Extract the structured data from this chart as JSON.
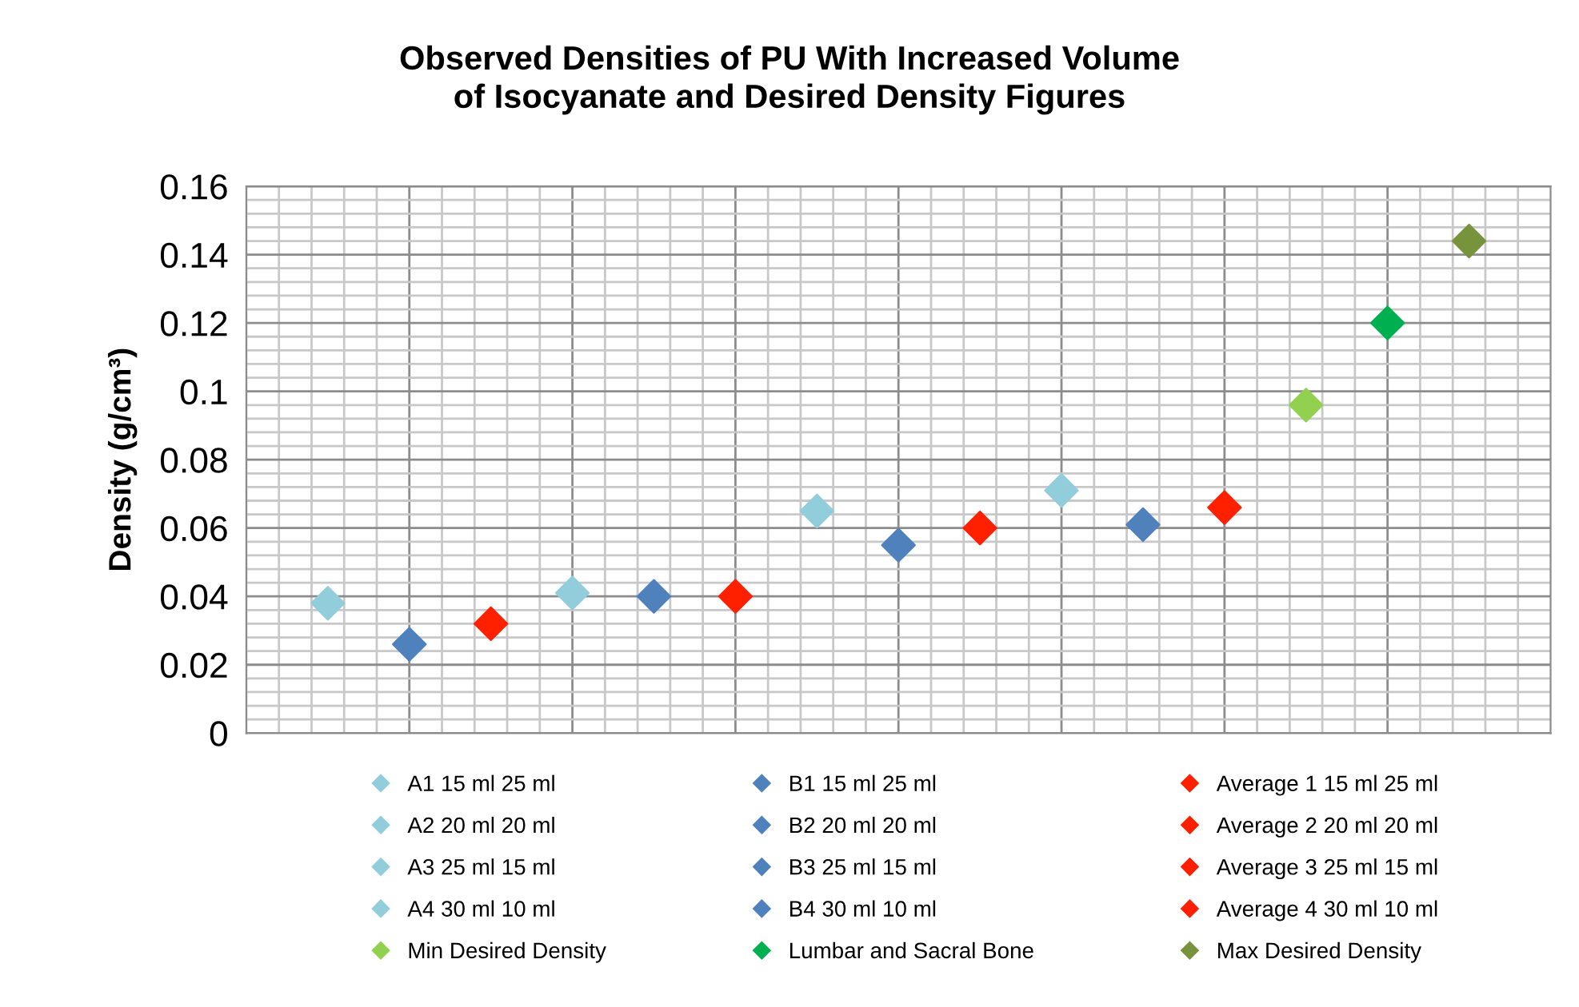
{
  "chart_data": {
    "type": "scatter",
    "title": "Observed Densities of PU With Increased Volume\nof Isocyanate and Desired Density Figures",
    "ylabel": "Density (g/cm³)",
    "categories": [
      null,
      null,
      null,
      null,
      null,
      null,
      null,
      null,
      null,
      null,
      null,
      null,
      null,
      null,
      null
    ],
    "ylim": [
      0,
      0.16
    ],
    "yticks": [
      0,
      0.02,
      0.04,
      0.06,
      0.08,
      0.1,
      0.12,
      0.14,
      0.16
    ],
    "grid": true,
    "legend": "bottom",
    "marker": "diamond",
    "series": [
      {
        "name": "A1 15 ml 25 ml",
        "color": "#92cddc",
        "values": [
          0.038,
          null,
          null,
          null,
          null,
          null,
          null,
          null,
          null,
          null,
          null,
          null,
          null,
          null,
          null
        ]
      },
      {
        "name": "B1 15 ml 25 ml",
        "color": "#4f81bd",
        "values": [
          null,
          0.026,
          null,
          null,
          null,
          null,
          null,
          null,
          null,
          null,
          null,
          null,
          null,
          null,
          null
        ]
      },
      {
        "name": "Average 1 15 ml 25 ml",
        "color": "#ff2000",
        "values": [
          null,
          null,
          0.032,
          null,
          null,
          null,
          null,
          null,
          null,
          null,
          null,
          null,
          null,
          null,
          null
        ]
      },
      {
        "name": "A2 20 ml 20 ml",
        "color": "#92cddc",
        "values": [
          null,
          null,
          null,
          0.041,
          null,
          null,
          null,
          null,
          null,
          null,
          null,
          null,
          null,
          null,
          null
        ]
      },
      {
        "name": "B2 20 ml 20 ml",
        "color": "#4f81bd",
        "values": [
          null,
          null,
          null,
          null,
          0.04,
          null,
          null,
          null,
          null,
          null,
          null,
          null,
          null,
          null,
          null
        ]
      },
      {
        "name": "Average 2 20 ml 20 ml",
        "color": "#ff2000",
        "values": [
          null,
          null,
          null,
          null,
          null,
          0.04,
          null,
          null,
          null,
          null,
          null,
          null,
          null,
          null,
          null
        ]
      },
      {
        "name": "A3 25 ml 15 ml",
        "color": "#92cddc",
        "values": [
          null,
          null,
          null,
          null,
          null,
          null,
          0.065,
          null,
          null,
          null,
          null,
          null,
          null,
          null,
          null
        ]
      },
      {
        "name": "B3 25 ml 15 ml",
        "color": "#4f81bd",
        "values": [
          null,
          null,
          null,
          null,
          null,
          null,
          null,
          0.055,
          null,
          null,
          null,
          null,
          null,
          null,
          null
        ]
      },
      {
        "name": "Average 3 25 ml 15 ml",
        "color": "#ff2000",
        "values": [
          null,
          null,
          null,
          null,
          null,
          null,
          null,
          null,
          0.06,
          null,
          null,
          null,
          null,
          null,
          null
        ]
      },
      {
        "name": "A4 30 ml 10 ml",
        "color": "#92cddc",
        "values": [
          null,
          null,
          null,
          null,
          null,
          null,
          null,
          null,
          null,
          0.071,
          null,
          null,
          null,
          null,
          null
        ]
      },
      {
        "name": "B4 30 ml 10 ml",
        "color": "#4f81bd",
        "values": [
          null,
          null,
          null,
          null,
          null,
          null,
          null,
          null,
          null,
          null,
          0.061,
          null,
          null,
          null,
          null
        ]
      },
      {
        "name": "Average 4 30 ml 10 ml",
        "color": "#ff2000",
        "values": [
          null,
          null,
          null,
          null,
          null,
          null,
          null,
          null,
          null,
          null,
          null,
          0.066,
          null,
          null,
          null
        ]
      },
      {
        "name": "Min Desired Density",
        "color": "#92d050",
        "values": [
          null,
          null,
          null,
          null,
          null,
          null,
          null,
          null,
          null,
          null,
          null,
          null,
          0.096,
          null,
          null
        ]
      },
      {
        "name": "Lumbar and Sacral Bone",
        "color": "#00b050",
        "values": [
          null,
          null,
          null,
          null,
          null,
          null,
          null,
          null,
          null,
          null,
          null,
          null,
          null,
          0.12,
          null
        ]
      },
      {
        "name": "Max Desired Density",
        "color": "#77933c",
        "values": [
          null,
          null,
          null,
          null,
          null,
          null,
          null,
          null,
          null,
          null,
          null,
          null,
          null,
          null,
          0.144
        ]
      }
    ]
  }
}
